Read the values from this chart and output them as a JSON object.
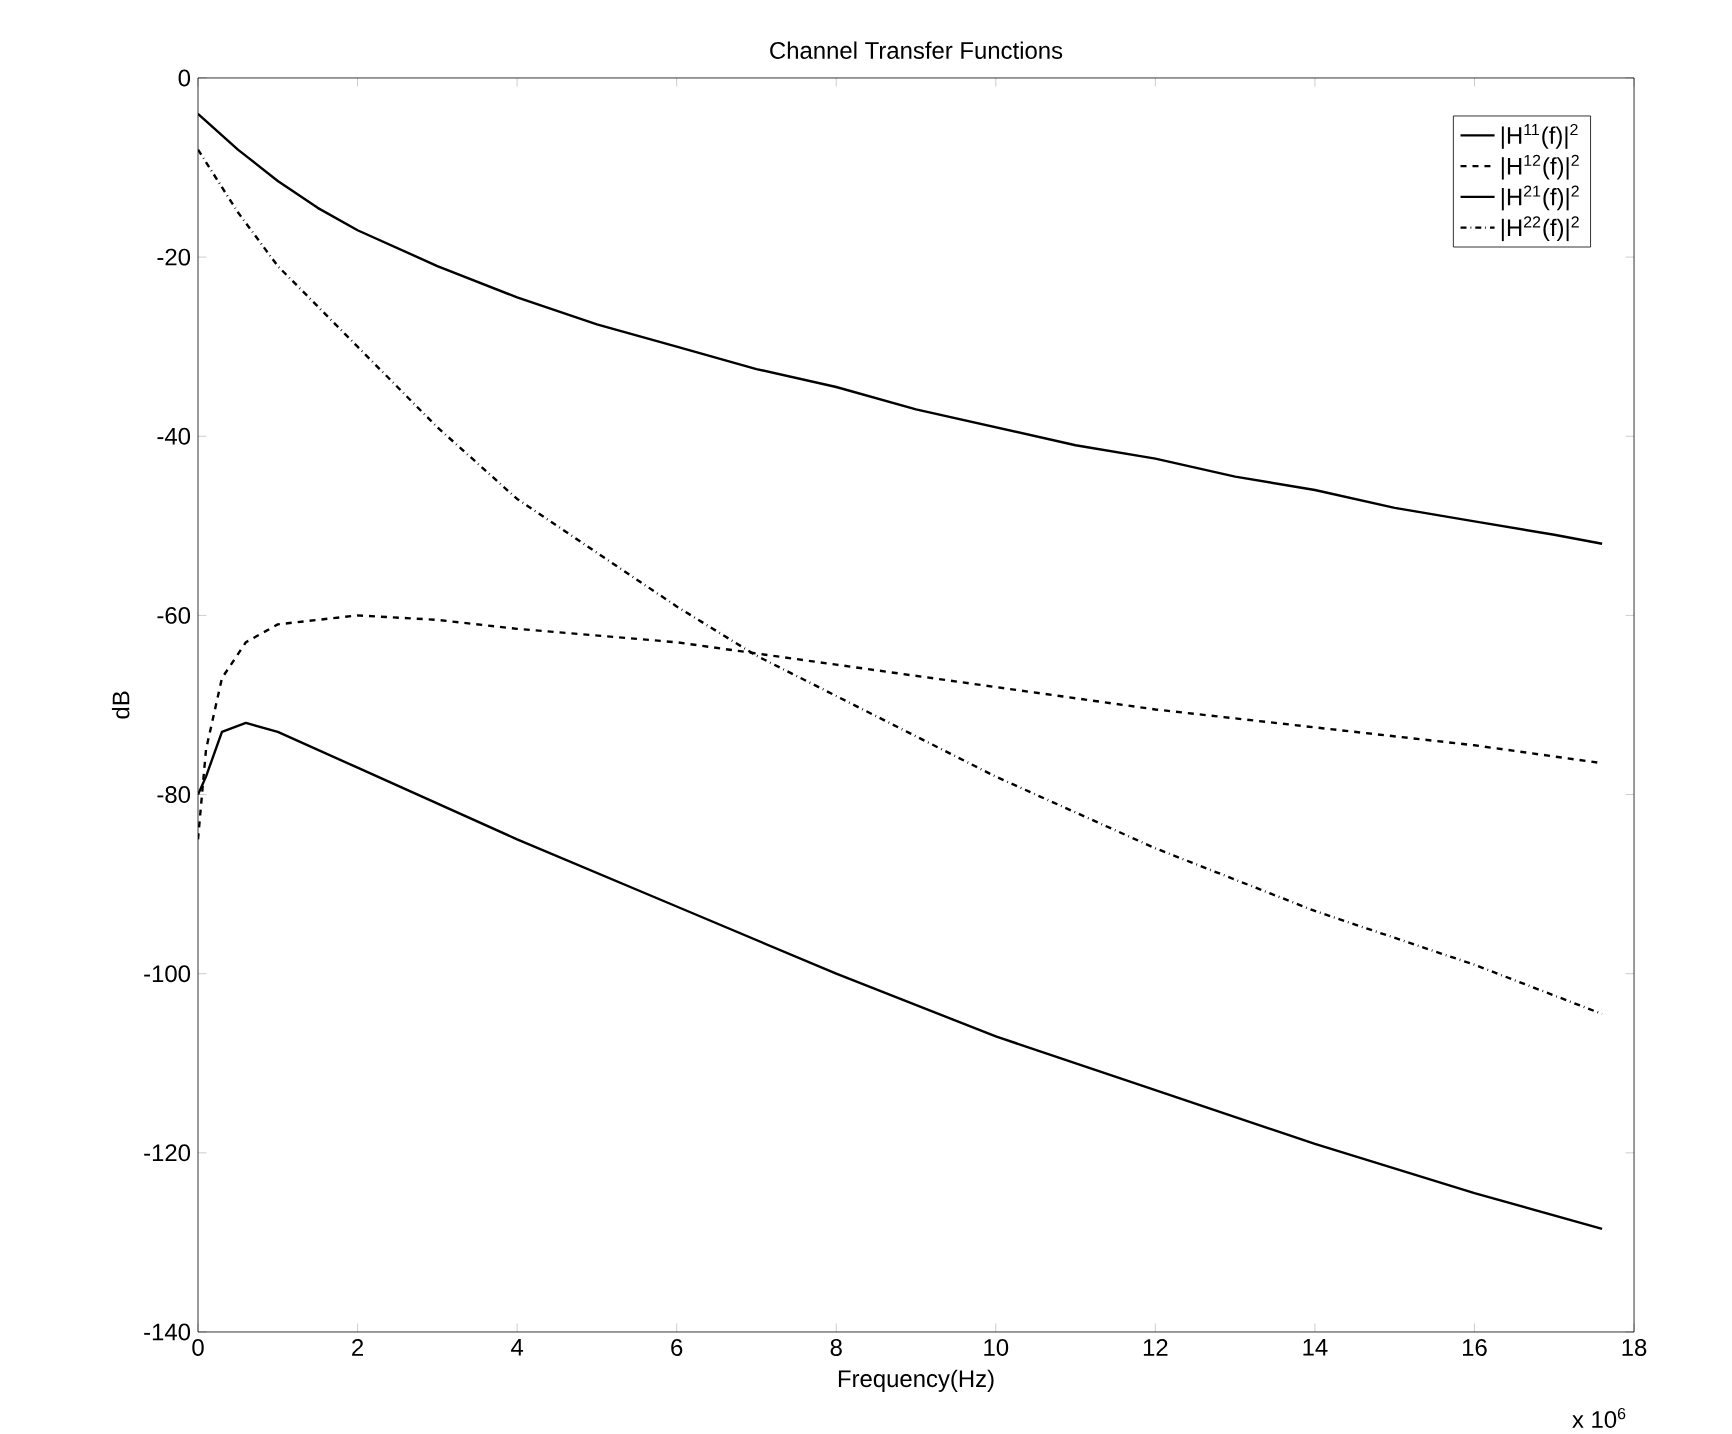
{
  "chart_data": {
    "type": "line",
    "title": "Channel Transfer Functions",
    "xlabel": "Frequency(Hz)",
    "ylabel": "dB",
    "annotations": [
      "x 10$^{6}$"
    ],
    "xlim": [
      0,
      18
    ],
    "ylim": [
      -140,
      0
    ],
    "xticks": [
      0,
      2,
      4,
      6,
      8,
      10,
      12,
      14,
      16,
      18
    ],
    "yticks": [
      -140,
      -120,
      -100,
      -80,
      -60,
      -40,
      -20,
      0
    ],
    "grid": false,
    "legend": "top right",
    "marker": "none",
    "series": [
      {
        "name": "|H$^{11}$(f)|$^{2}$",
        "color": "#000000",
        "line_style": "solid",
        "x": [
          0,
          0.5,
          1,
          1.5,
          2,
          3,
          4,
          5,
          6,
          7,
          8,
          9,
          10,
          11,
          12,
          13,
          14,
          15,
          16,
          17,
          17.6
        ],
        "values": [
          -4,
          -8,
          -11.5,
          -14.5,
          -17,
          -21,
          -24.5,
          -27.5,
          -30,
          -32.5,
          -34.5,
          -37,
          -39,
          -41,
          -42.5,
          -44.5,
          -46,
          -48,
          -49.5,
          -51,
          -52
        ]
      },
      {
        "name": "|H$^{12}$(f)|$^{2}$",
        "color": "#000000",
        "line_style": "dashed",
        "x": [
          0,
          0.1,
          0.3,
          0.6,
          1,
          2,
          3,
          4,
          6,
          8,
          10,
          12,
          14,
          16,
          17.6
        ],
        "values": [
          -85,
          -75,
          -67,
          -63,
          -61,
          -60,
          -60.5,
          -61.5,
          -63,
          -65.5,
          -68,
          -70.5,
          -72.5,
          -74.5,
          -76.5
        ]
      },
      {
        "name": "|H$^{21}$(f)|$^{2}$",
        "color": "#000000",
        "line_style": "solid",
        "x": [
          0,
          0.1,
          0.3,
          0.6,
          1,
          2,
          4,
          6,
          8,
          10,
          12,
          14,
          16,
          17.6
        ],
        "values": [
          -80,
          -78,
          -73,
          -72,
          -73,
          -77,
          -85,
          -92.5,
          -100,
          -107,
          -113,
          -119,
          -124.5,
          -128.5
        ]
      },
      {
        "name": "|H$^{22}$(f)|$^{2}$",
        "color": "#000000",
        "line_style": "dashdot",
        "x": [
          0,
          0.5,
          1,
          2,
          3,
          4,
          5,
          6,
          7,
          8,
          10,
          12,
          14,
          16,
          17.6
        ],
        "values": [
          -8,
          -15,
          -21,
          -30,
          -39,
          -47,
          -53,
          -59,
          -64.5,
          -69,
          -78,
          -86,
          -93,
          -99,
          -104.5
        ]
      }
    ]
  }
}
